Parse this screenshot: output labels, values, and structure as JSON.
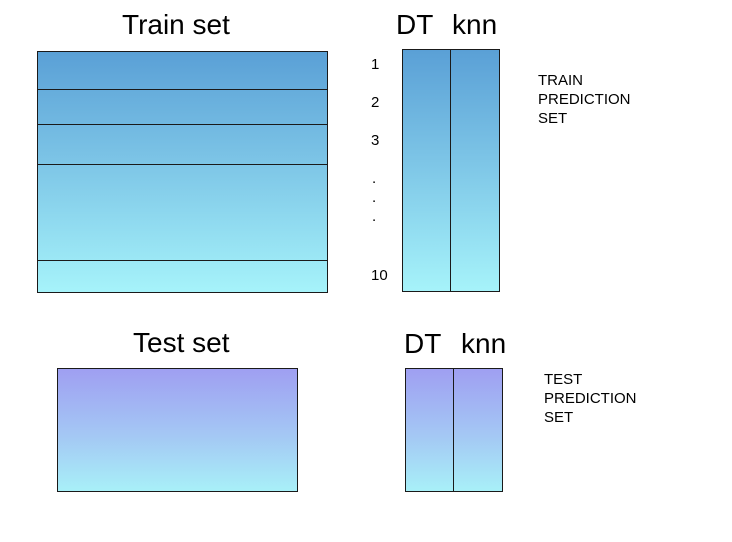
{
  "train_section": {
    "title": "Train set",
    "prediction_headers": {
      "dt": "DT",
      "knn": "knn"
    },
    "row_labels": [
      "1",
      "2",
      "3",
      ".",
      ".",
      ".",
      "10"
    ],
    "prediction_set_label": "TRAIN\nPREDICTION\nSET"
  },
  "test_section": {
    "title": "Test set",
    "prediction_headers": {
      "dt": "DT",
      "knn": "knn"
    },
    "prediction_set_label": "TEST\nPREDICTION\nSET"
  },
  "colors": {
    "train_gradient_top": "#5aa0d6",
    "train_gradient_bottom": "#a6f3fa",
    "test_gradient_top": "#9f9ff2",
    "test_gradient_bottom": "#a8f0f8",
    "border": "#1a1a1a"
  }
}
